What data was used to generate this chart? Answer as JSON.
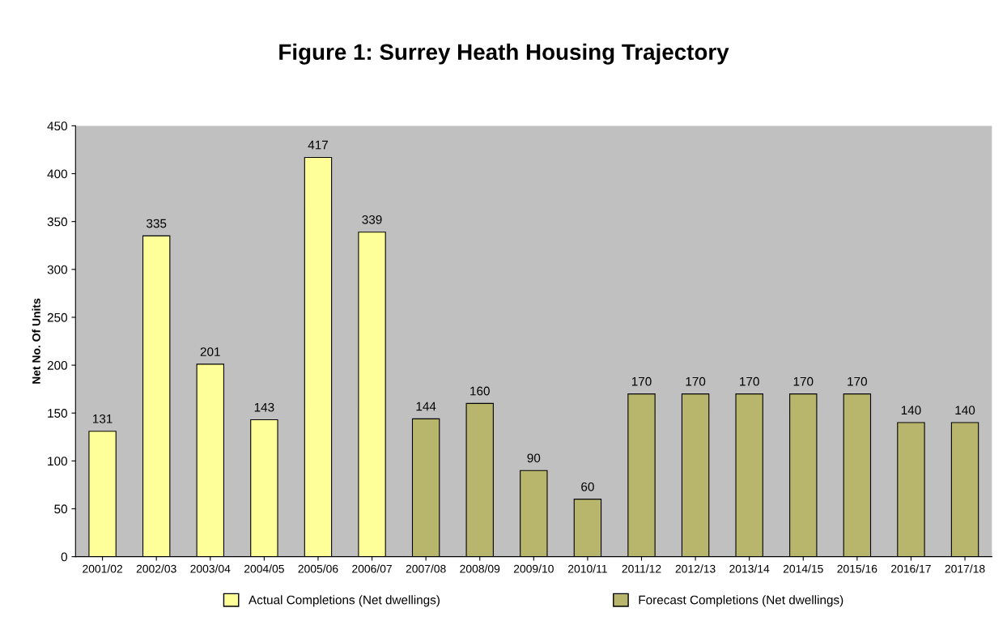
{
  "chart_data": {
    "type": "bar",
    "title": "Figure 1: Surrey Heath Housing Trajectory",
    "ylabel": "Net No. Of Units",
    "categories": [
      "2001/02",
      "2002/03",
      "2003/04",
      "2004/05",
      "2005/06",
      "2006/07",
      "2007/08",
      "2008/09",
      "2009/10",
      "2010/11",
      "2011/12",
      "2012/13",
      "2013/14",
      "2014/15",
      "2015/16",
      "2016/17",
      "2017/18"
    ],
    "series": [
      {
        "name": "Actual Completions (Net dwellings)",
        "color": "#ffff99",
        "values": [
          131,
          335,
          201,
          143,
          417,
          339,
          null,
          null,
          null,
          null,
          null,
          null,
          null,
          null,
          null,
          null,
          null
        ]
      },
      {
        "name": "Forecast Completions (Net dwellings)",
        "color": "#b8b56c",
        "values": [
          null,
          null,
          null,
          null,
          null,
          null,
          144,
          160,
          90,
          60,
          170,
          170,
          170,
          170,
          170,
          140,
          140
        ]
      }
    ],
    "ylim": [
      0,
      450
    ],
    "yticks": [
      0,
      50,
      100,
      150,
      200,
      250,
      300,
      350,
      400,
      450
    ],
    "data_labels": true,
    "legend": "bottom",
    "grid": false
  }
}
